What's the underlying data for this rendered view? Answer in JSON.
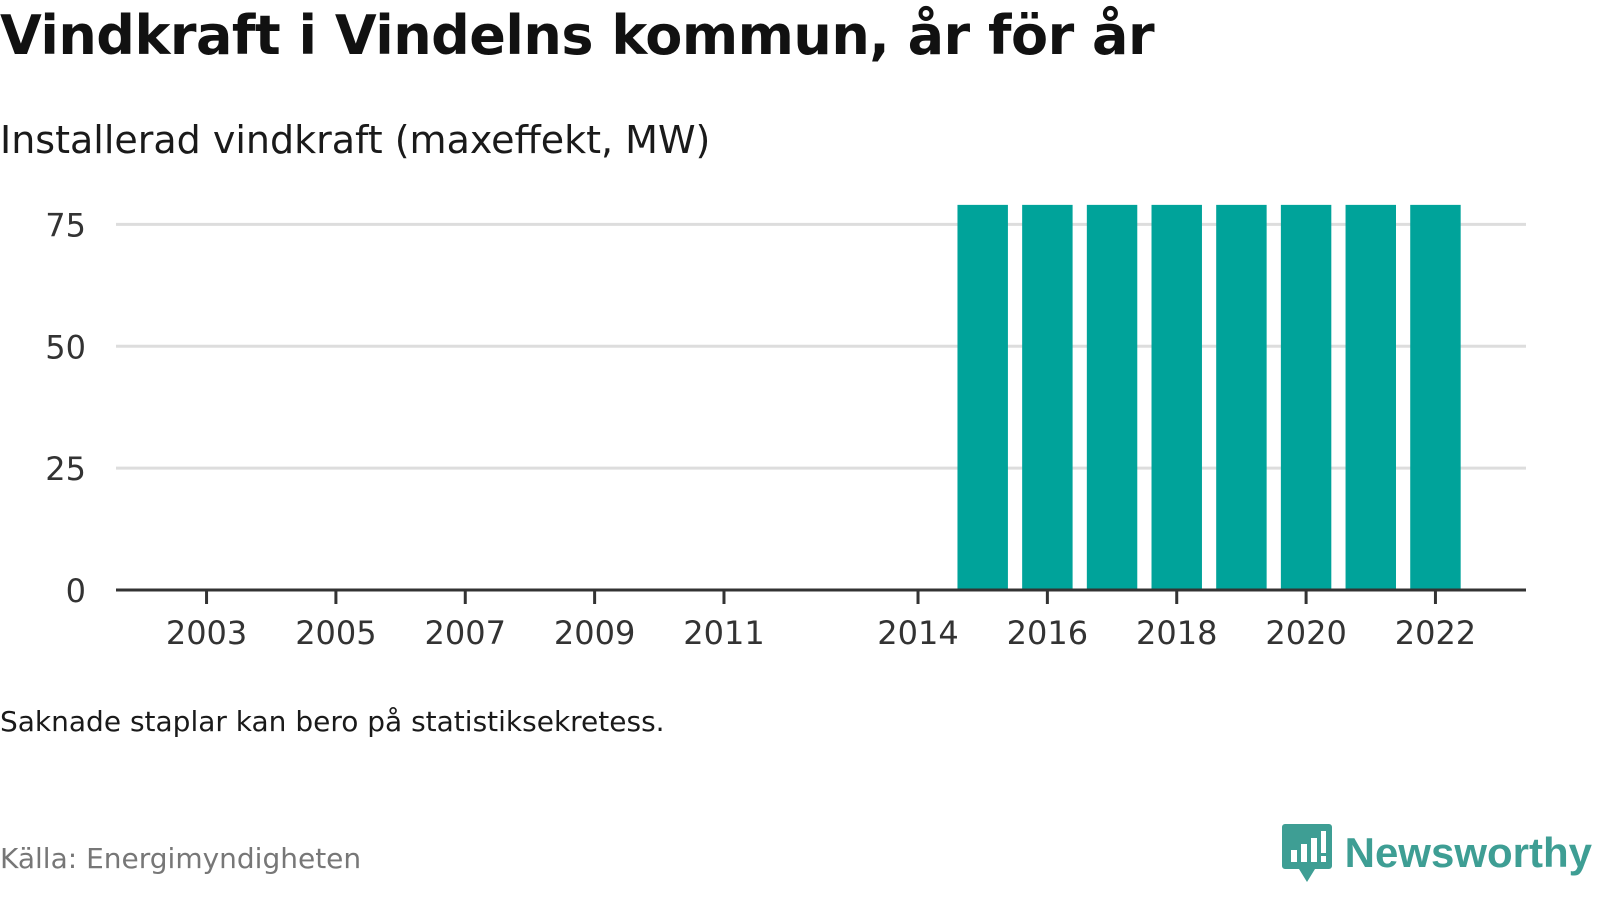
{
  "title": "Vindkraft i Vindelns kommun, år för år",
  "subtitle": "Installerad vindkraft (maxeffekt, MW)",
  "note": "Saknade staplar kan bero på statistiksekretess.",
  "source": "Källa: Energimyndigheten",
  "brand": {
    "name": "Newsworthy",
    "icon": "newsworthy-logo-icon",
    "color": "#3e9e94"
  },
  "colors": {
    "bar": "#00a39a",
    "grid": "#dddddd",
    "axis": "#333333",
    "tick_text": "#333333"
  },
  "chart_data": {
    "type": "bar",
    "title": "Vindkraft i Vindelns kommun, år för år",
    "subtitle": "Installerad vindkraft (maxeffekt, MW)",
    "xlabel": "",
    "ylabel": "",
    "x_range": [
      2001.6,
      2023.4
    ],
    "ylim": [
      0,
      80
    ],
    "y_ticks": [
      0,
      25,
      50,
      75
    ],
    "x_tick_labels": [
      2003,
      2005,
      2007,
      2009,
      2011,
      2014,
      2016,
      2018,
      2020,
      2022
    ],
    "categories": [
      2015,
      2016,
      2017,
      2018,
      2019,
      2020,
      2021,
      2022
    ],
    "values": [
      79,
      79,
      79,
      79,
      79,
      79,
      79,
      79
    ],
    "grid": true,
    "legend": "none"
  }
}
